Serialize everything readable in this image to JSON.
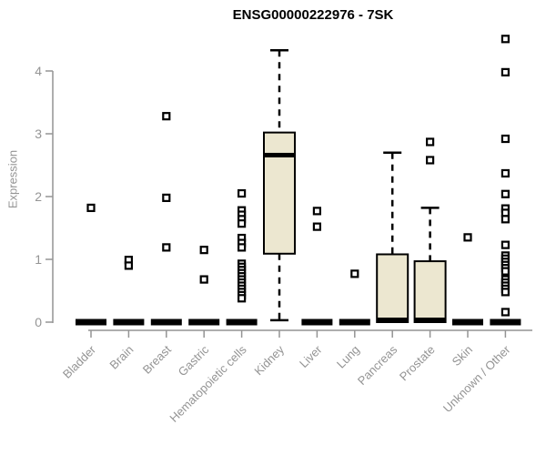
{
  "chart_data": {
    "type": "boxplot",
    "title": "ENSG00000222976 - 7SK",
    "ylabel": "Expression",
    "xlabel": "",
    "ylim": [
      0,
      4.6
    ],
    "yticks": [
      0,
      1,
      2,
      3,
      4
    ],
    "grid": false,
    "legend": "none",
    "colors": {
      "box_fill": "#ece7d0",
      "box_stroke": "#000000",
      "median": "#000000",
      "outlier": "#000000",
      "axis": "#949494",
      "background": "#ffffff",
      "title": "#000000"
    },
    "categories": [
      "Bladder",
      "Brain",
      "Breast",
      "Gastric",
      "Hematopoietic cells",
      "Kidney",
      "Liver",
      "Lung",
      "Pancreas",
      "Prostate",
      "Skin",
      "Unknown / Other"
    ],
    "boxes": [
      {
        "category": "Bladder",
        "low": 0,
        "q1": 0,
        "median": 0,
        "q3": 0,
        "high": 0,
        "outliers": [
          1.82
        ]
      },
      {
        "category": "Brain",
        "low": 0,
        "q1": 0,
        "median": 0,
        "q3": 0,
        "high": 0,
        "outliers": [
          0.99,
          0.9
        ]
      },
      {
        "category": "Breast",
        "low": 0,
        "q1": 0,
        "median": 0,
        "q3": 0,
        "high": 0,
        "outliers": [
          3.28,
          1.98,
          1.19
        ]
      },
      {
        "category": "Gastric",
        "low": 0,
        "q1": 0,
        "median": 0,
        "q3": 0,
        "high": 0,
        "outliers": [
          1.15,
          0.68
        ]
      },
      {
        "category": "Hematopoietic cells",
        "low": 0,
        "q1": 0,
        "median": 0,
        "q3": 0,
        "high": 0,
        "outliers": [
          2.05,
          1.78,
          1.71,
          1.64,
          1.57,
          1.34,
          1.26,
          1.19,
          0.93,
          0.88,
          0.83,
          0.78,
          0.73,
          0.68,
          0.63,
          0.58,
          0.53,
          0.48,
          0.43,
          0.38
        ]
      },
      {
        "category": "Kidney",
        "low": 0.03,
        "q1": 1.09,
        "median": 2.66,
        "q3": 3.02,
        "high": 4.33,
        "outliers": []
      },
      {
        "category": "Liver",
        "low": 0,
        "q1": 0,
        "median": 0,
        "q3": 0,
        "high": 0,
        "outliers": [
          1.77,
          1.52
        ]
      },
      {
        "category": "Lung",
        "low": 0,
        "q1": 0,
        "median": 0,
        "q3": 0,
        "high": 0,
        "outliers": [
          0.77
        ]
      },
      {
        "category": "Pancreas",
        "low": 0,
        "q1": 0,
        "median": 0,
        "q3": 1.08,
        "high": 2.7,
        "outliers": []
      },
      {
        "category": "Prostate",
        "low": 0,
        "q1": 0,
        "median": 0,
        "q3": 0.97,
        "high": 1.82,
        "outliers": [
          2.87,
          2.58
        ]
      },
      {
        "category": "Skin",
        "low": 0,
        "q1": 0,
        "median": 0,
        "q3": 0,
        "high": 0,
        "outliers": [
          1.35
        ]
      },
      {
        "category": "Unknown / Other",
        "low": 0,
        "q1": 0,
        "median": 0,
        "q3": 0,
        "high": 0,
        "outliers": [
          4.51,
          3.98,
          2.92,
          2.37,
          2.04,
          1.81,
          1.74,
          1.64,
          1.23,
          1.06,
          1.01,
          0.96,
          0.91,
          0.86,
          0.81,
          0.68,
          0.63,
          0.58,
          0.53,
          0.48,
          0.16
        ]
      }
    ]
  }
}
